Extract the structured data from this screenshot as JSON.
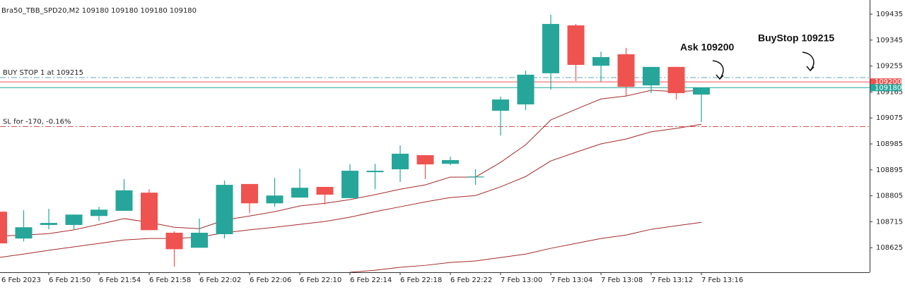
{
  "chart_data": {
    "type": "candlestick",
    "title": "Bra50_TBB_SPD20,M2  109180 109180 109180 109180",
    "categories": [
      "6 Feb 2023",
      null,
      "6 Feb 21:50",
      null,
      "6 Feb 21:54",
      null,
      "6 Feb 21:58",
      null,
      "6 Feb 22:02",
      null,
      "6 Feb 22:06",
      null,
      "6 Feb 22:10",
      null,
      "6 Feb 22:14",
      null,
      "6 Feb 22:18",
      null,
      "6 Feb 22:22",
      null,
      "7 Feb 13:00",
      null,
      "7 Feb 13:04",
      null,
      "7 Feb 13:08",
      null,
      "7 Feb 13:12",
      null,
      "7 Feb 13:16"
    ],
    "open": [
      108750,
      108657,
      108704,
      108704,
      108735,
      108753,
      108816,
      108677,
      108625,
      108672,
      108846,
      108779,
      108799,
      108836,
      108797,
      108887,
      108897,
      108946,
      108916,
      108872,
      109100,
      109122,
      109230,
      109396,
      109256,
      109296,
      109188,
      109252,
      109156
    ],
    "high": [
      108762,
      108755,
      108760,
      108740,
      108767,
      108863,
      108828,
      108682,
      108726,
      108858,
      108846,
      108867,
      108899,
      108836,
      108914,
      108916,
      108980,
      108946,
      108941,
      108897,
      109149,
      109239,
      109433,
      109401,
      109305,
      109318,
      109252,
      109252,
      109181
    ],
    "low": [
      108640,
      108647,
      108689,
      108689,
      108718,
      108753,
      108686,
      108559,
      108625,
      108657,
      108745,
      108767,
      108799,
      108775,
      108797,
      108828,
      108853,
      108863,
      108911,
      108843,
      109014,
      109102,
      109173,
      109203,
      109200,
      109151,
      109161,
      109139,
      109061
    ],
    "close": [
      108640,
      108696,
      108711,
      108740,
      108757,
      108824,
      108686,
      108620,
      108677,
      108843,
      108779,
      108806,
      108833,
      108809,
      108892,
      108892,
      108951,
      108914,
      108929,
      108872,
      109139,
      109225,
      109401,
      109259,
      109286,
      109183,
      109252,
      109161,
      109180
    ],
    "up_color": "#26a69a",
    "down_color": "#ef5350",
    "lines": [
      {
        "color": "#a52a2a",
        "values": [
          108665,
          108669,
          108674,
          108687,
          108706,
          108726,
          108713,
          108696,
          108691,
          108721,
          108735,
          108750,
          108770,
          108779,
          108792,
          108809,
          108828,
          108843,
          108870,
          108870,
          108921,
          108982,
          109068,
          109105,
          109141,
          109151,
          109171,
          109166,
          109171
        ]
      },
      {
        "color": "#a52a2a",
        "values": [
          108591,
          108603,
          108616,
          108628,
          108640,
          108652,
          108657,
          108657,
          108662,
          108677,
          108687,
          108696,
          108706,
          108716,
          108731,
          108750,
          108767,
          108784,
          108799,
          108806,
          108836,
          108872,
          108926,
          108956,
          108985,
          109002,
          109027,
          109039,
          109053
        ]
      },
      {
        "color": "#a52a2a",
        "values": [
          null,
          null,
          null,
          null,
          null,
          null,
          null,
          null,
          null,
          null,
          null,
          null,
          null,
          null,
          108540,
          108547,
          108557,
          108564,
          108574,
          108579,
          108591,
          108603,
          108623,
          108640,
          108657,
          108669,
          108689,
          108701,
          108713
        ]
      }
    ],
    "levels": [
      {
        "value": 109215,
        "label": "BUY STOP 1 at 109215",
        "color": "#5fa8b8"
      },
      {
        "value": 109045,
        "label": "SL for -170, -0.16%",
        "color": "#d9534f"
      }
    ],
    "price_tags": [
      {
        "value": 109200,
        "color": "#ef5350"
      },
      {
        "value": 109180,
        "color": "#26a69a"
      }
    ],
    "annotations": [
      "Ask 109200",
      "BuyStop 109215"
    ],
    "ylim": [
      108540,
      109484
    ],
    "yticks": [
      109435,
      109345,
      109255,
      109165,
      109075,
      108985,
      108895,
      108805,
      108715,
      108625
    ]
  }
}
